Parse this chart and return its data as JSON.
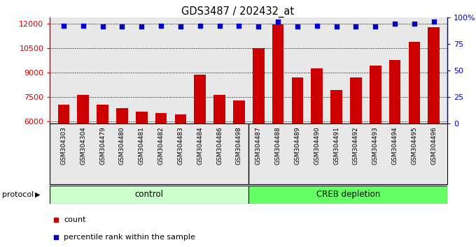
{
  "title": "GDS3487 / 202432_at",
  "samples": [
    "GSM304303",
    "GSM304304",
    "GSM304479",
    "GSM304480",
    "GSM304481",
    "GSM304482",
    "GSM304483",
    "GSM304484",
    "GSM304486",
    "GSM304498",
    "GSM304487",
    "GSM304488",
    "GSM304489",
    "GSM304490",
    "GSM304491",
    "GSM304492",
    "GSM304493",
    "GSM304494",
    "GSM304495",
    "GSM304496"
  ],
  "counts": [
    7000,
    7600,
    7000,
    6800,
    6600,
    6500,
    6400,
    8850,
    7600,
    7250,
    10500,
    11950,
    8700,
    9250,
    7900,
    8700,
    9400,
    9750,
    10900,
    11800
  ],
  "percentile_rank": [
    92,
    92,
    91,
    91,
    91,
    92,
    91,
    92,
    92,
    92,
    91,
    96,
    91,
    92,
    91,
    91,
    91,
    94,
    94,
    96
  ],
  "group_labels": [
    "control",
    "CREB depletion"
  ],
  "group_sizes": [
    10,
    10
  ],
  "ylim_left": [
    5850,
    12400
  ],
  "ylim_right": [
    0,
    100
  ],
  "yticks_left": [
    6000,
    7500,
    9000,
    10500,
    12000
  ],
  "yticks_right": [
    0,
    25,
    50,
    75,
    100
  ],
  "bar_color": "#CC0000",
  "dot_color": "#0000CC",
  "plot_bg_color": "#E8E8E8",
  "control_color": "#CCFFCC",
  "creb_color": "#66FF66",
  "protocol_label": "protocol",
  "legend_count": "count",
  "legend_percentile": "percentile rank within the sample"
}
